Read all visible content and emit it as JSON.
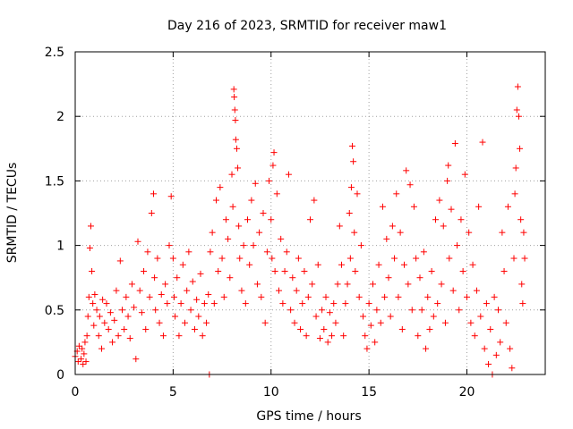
{
  "chart_data": {
    "type": "scatter",
    "title": "Day 216 of 2023, SRMTID for receiver maw1",
    "xlabel": "GPS time / hours",
    "ylabel": "SRMTID / TECUs",
    "xlim": [
      0,
      24
    ],
    "ylim": [
      0,
      2.5
    ],
    "xticks": [
      0,
      5,
      10,
      15,
      20
    ],
    "xtick_labels": [
      "0",
      "5",
      "10",
      "15",
      "20"
    ],
    "yticks": [
      0,
      0.5,
      1,
      1.5,
      2,
      2.5
    ],
    "ytick_labels": [
      "0",
      "0.5",
      "1",
      "1.5",
      "2",
      "2.5"
    ],
    "grid": true,
    "marker": "+",
    "color": "#ff0000",
    "series": [
      {
        "name": "SRMTID",
        "points": [
          [
            0.0,
            0.14
          ],
          [
            0.1,
            0.18
          ],
          [
            0.15,
            0.1
          ],
          [
            0.2,
            0.22
          ],
          [
            0.3,
            0.12
          ],
          [
            0.35,
            0.2
          ],
          [
            0.4,
            0.08
          ],
          [
            0.45,
            0.16
          ],
          [
            0.5,
            0.25
          ],
          [
            0.55,
            0.1
          ],
          [
            0.6,
            0.3
          ],
          [
            0.65,
            0.45
          ],
          [
            0.7,
            0.6
          ],
          [
            0.75,
            0.98
          ],
          [
            0.8,
            1.15
          ],
          [
            0.85,
            0.8
          ],
          [
            0.9,
            0.55
          ],
          [
            0.95,
            0.38
          ],
          [
            1.0,
            0.62
          ],
          [
            1.1,
            0.5
          ],
          [
            1.2,
            0.3
          ],
          [
            1.25,
            0.45
          ],
          [
            1.35,
            0.2
          ],
          [
            1.4,
            0.58
          ],
          [
            1.5,
            0.4
          ],
          [
            1.6,
            0.55
          ],
          [
            1.7,
            0.35
          ],
          [
            1.8,
            0.48
          ],
          [
            1.9,
            0.25
          ],
          [
            2.0,
            0.42
          ],
          [
            2.1,
            0.65
          ],
          [
            2.2,
            0.3
          ],
          [
            2.3,
            0.88
          ],
          [
            2.4,
            0.5
          ],
          [
            2.5,
            0.35
          ],
          [
            2.6,
            0.6
          ],
          [
            2.7,
            0.45
          ],
          [
            2.8,
            0.28
          ],
          [
            2.9,
            0.7
          ],
          [
            3.0,
            0.52
          ],
          [
            3.1,
            0.12
          ],
          [
            3.2,
            1.03
          ],
          [
            3.3,
            0.65
          ],
          [
            3.4,
            0.48
          ],
          [
            3.5,
            0.8
          ],
          [
            3.6,
            0.35
          ],
          [
            3.7,
            0.95
          ],
          [
            3.8,
            0.6
          ],
          [
            3.9,
            1.25
          ],
          [
            4.0,
            1.4
          ],
          [
            4.05,
            0.75
          ],
          [
            4.1,
            0.5
          ],
          [
            4.2,
            0.9
          ],
          [
            4.3,
            0.4
          ],
          [
            4.4,
            0.62
          ],
          [
            4.5,
            0.3
          ],
          [
            4.6,
            0.7
          ],
          [
            4.7,
            0.55
          ],
          [
            4.8,
            1.0
          ],
          [
            4.9,
            1.38
          ],
          [
            5.0,
            0.9
          ],
          [
            5.05,
            0.6
          ],
          [
            5.1,
            0.45
          ],
          [
            5.2,
            0.75
          ],
          [
            5.3,
            0.3
          ],
          [
            5.4,
            0.55
          ],
          [
            5.5,
            0.85
          ],
          [
            5.6,
            0.4
          ],
          [
            5.7,
            0.65
          ],
          [
            5.8,
            0.95
          ],
          [
            5.9,
            0.5
          ],
          [
            6.0,
            0.72
          ],
          [
            6.1,
            0.35
          ],
          [
            6.2,
            0.58
          ],
          [
            6.3,
            0.45
          ],
          [
            6.4,
            0.78
          ],
          [
            6.5,
            0.3
          ],
          [
            6.6,
            0.55
          ],
          [
            6.7,
            0.4
          ],
          [
            6.8,
            0.62
          ],
          [
            6.85,
            0.0
          ],
          [
            6.9,
            0.95
          ],
          [
            7.0,
            1.1
          ],
          [
            7.1,
            0.55
          ],
          [
            7.2,
            1.35
          ],
          [
            7.3,
            0.8
          ],
          [
            7.4,
            1.45
          ],
          [
            7.5,
            0.9
          ],
          [
            7.6,
            0.6
          ],
          [
            7.7,
            1.2
          ],
          [
            7.8,
            1.05
          ],
          [
            7.9,
            0.75
          ],
          [
            8.0,
            1.55
          ],
          [
            8.05,
            1.3
          ],
          [
            8.1,
            2.21
          ],
          [
            8.12,
            2.15
          ],
          [
            8.15,
            2.05
          ],
          [
            8.18,
            1.97
          ],
          [
            8.2,
            1.82
          ],
          [
            8.25,
            1.75
          ],
          [
            8.3,
            1.6
          ],
          [
            8.35,
            1.15
          ],
          [
            8.4,
            0.9
          ],
          [
            8.5,
            0.65
          ],
          [
            8.6,
            1.0
          ],
          [
            8.7,
            0.55
          ],
          [
            8.8,
            1.2
          ],
          [
            8.9,
            0.85
          ],
          [
            9.0,
            1.35
          ],
          [
            9.1,
            1.0
          ],
          [
            9.2,
            1.48
          ],
          [
            9.3,
            0.7
          ],
          [
            9.4,
            1.1
          ],
          [
            9.5,
            0.6
          ],
          [
            9.6,
            1.25
          ],
          [
            9.7,
            0.4
          ],
          [
            9.8,
            0.95
          ],
          [
            9.9,
            1.5
          ],
          [
            10.0,
            1.2
          ],
          [
            10.05,
            0.9
          ],
          [
            10.1,
            1.62
          ],
          [
            10.15,
            1.72
          ],
          [
            10.2,
            0.8
          ],
          [
            10.3,
            1.4
          ],
          [
            10.4,
            0.65
          ],
          [
            10.5,
            1.05
          ],
          [
            10.6,
            0.55
          ],
          [
            10.7,
            0.8
          ],
          [
            10.8,
            0.95
          ],
          [
            10.9,
            1.55
          ],
          [
            11.0,
            0.5
          ],
          [
            11.1,
            0.75
          ],
          [
            11.2,
            0.4
          ],
          [
            11.3,
            0.65
          ],
          [
            11.4,
            0.9
          ],
          [
            11.5,
            0.35
          ],
          [
            11.6,
            0.55
          ],
          [
            11.7,
            0.8
          ],
          [
            11.8,
            0.3
          ],
          [
            11.9,
            0.6
          ],
          [
            12.0,
            1.2
          ],
          [
            12.1,
            0.7
          ],
          [
            12.2,
            1.35
          ],
          [
            12.3,
            0.45
          ],
          [
            12.4,
            0.85
          ],
          [
            12.5,
            0.28
          ],
          [
            12.6,
            0.5
          ],
          [
            12.7,
            0.35
          ],
          [
            12.8,
            0.6
          ],
          [
            12.9,
            0.25
          ],
          [
            13.0,
            0.48
          ],
          [
            13.1,
            0.3
          ],
          [
            13.2,
            0.55
          ],
          [
            13.3,
            0.4
          ],
          [
            13.4,
            0.7
          ],
          [
            13.5,
            1.15
          ],
          [
            13.6,
            0.85
          ],
          [
            13.7,
            0.3
          ],
          [
            13.8,
            0.55
          ],
          [
            13.9,
            0.7
          ],
          [
            14.0,
            1.25
          ],
          [
            14.05,
            0.9
          ],
          [
            14.1,
            1.45
          ],
          [
            14.15,
            1.77
          ],
          [
            14.2,
            1.65
          ],
          [
            14.25,
            1.1
          ],
          [
            14.3,
            0.8
          ],
          [
            14.4,
            1.4
          ],
          [
            14.5,
            0.6
          ],
          [
            14.6,
            1.0
          ],
          [
            14.7,
            0.45
          ],
          [
            14.8,
            0.3
          ],
          [
            14.9,
            0.2
          ],
          [
            15.0,
            0.55
          ],
          [
            15.1,
            0.38
          ],
          [
            15.2,
            0.7
          ],
          [
            15.3,
            0.25
          ],
          [
            15.4,
            0.5
          ],
          [
            15.5,
            0.85
          ],
          [
            15.6,
            0.4
          ],
          [
            15.7,
            1.3
          ],
          [
            15.8,
            0.6
          ],
          [
            15.9,
            1.05
          ],
          [
            16.0,
            0.75
          ],
          [
            16.1,
            0.45
          ],
          [
            16.2,
            1.15
          ],
          [
            16.3,
            0.9
          ],
          [
            16.4,
            1.4
          ],
          [
            16.5,
            0.6
          ],
          [
            16.6,
            1.1
          ],
          [
            16.7,
            0.35
          ],
          [
            16.8,
            0.85
          ],
          [
            16.9,
            1.58
          ],
          [
            17.0,
            0.7
          ],
          [
            17.1,
            1.47
          ],
          [
            17.2,
            0.5
          ],
          [
            17.3,
            1.3
          ],
          [
            17.4,
            0.9
          ],
          [
            17.5,
            0.3
          ],
          [
            17.6,
            0.75
          ],
          [
            17.7,
            0.5
          ],
          [
            17.8,
            0.95
          ],
          [
            17.9,
            0.2
          ],
          [
            18.0,
            0.6
          ],
          [
            18.1,
            0.35
          ],
          [
            18.2,
            0.8
          ],
          [
            18.3,
            0.45
          ],
          [
            18.4,
            1.2
          ],
          [
            18.5,
            0.55
          ],
          [
            18.6,
            1.35
          ],
          [
            18.7,
            0.7
          ],
          [
            18.8,
            1.15
          ],
          [
            18.9,
            0.4
          ],
          [
            19.0,
            1.5
          ],
          [
            19.05,
            1.62
          ],
          [
            19.1,
            0.9
          ],
          [
            19.2,
            1.28
          ],
          [
            19.3,
            0.65
          ],
          [
            19.4,
            1.79
          ],
          [
            19.5,
            1.0
          ],
          [
            19.6,
            0.5
          ],
          [
            19.7,
            1.2
          ],
          [
            19.8,
            0.8
          ],
          [
            19.9,
            1.55
          ],
          [
            20.0,
            0.6
          ],
          [
            20.1,
            1.1
          ],
          [
            20.2,
            0.4
          ],
          [
            20.3,
            0.85
          ],
          [
            20.4,
            0.3
          ],
          [
            20.5,
            0.65
          ],
          [
            20.6,
            1.3
          ],
          [
            20.7,
            0.45
          ],
          [
            20.8,
            1.8
          ],
          [
            20.9,
            0.2
          ],
          [
            21.0,
            0.55
          ],
          [
            21.1,
            0.08
          ],
          [
            21.2,
            0.35
          ],
          [
            21.3,
            0.0
          ],
          [
            21.4,
            0.6
          ],
          [
            21.5,
            0.15
          ],
          [
            21.6,
            0.5
          ],
          [
            21.7,
            0.25
          ],
          [
            21.8,
            1.1
          ],
          [
            21.9,
            0.8
          ],
          [
            22.0,
            0.4
          ],
          [
            22.1,
            1.3
          ],
          [
            22.2,
            0.2
          ],
          [
            22.3,
            0.05
          ],
          [
            22.4,
            0.9
          ],
          [
            22.45,
            1.4
          ],
          [
            22.5,
            1.6
          ],
          [
            22.55,
            2.05
          ],
          [
            22.6,
            2.23
          ],
          [
            22.65,
            2.0
          ],
          [
            22.7,
            1.75
          ],
          [
            22.75,
            1.2
          ],
          [
            22.8,
            0.7
          ],
          [
            22.85,
            0.55
          ],
          [
            22.9,
            1.1
          ],
          [
            22.95,
            0.9
          ]
        ]
      }
    ]
  }
}
